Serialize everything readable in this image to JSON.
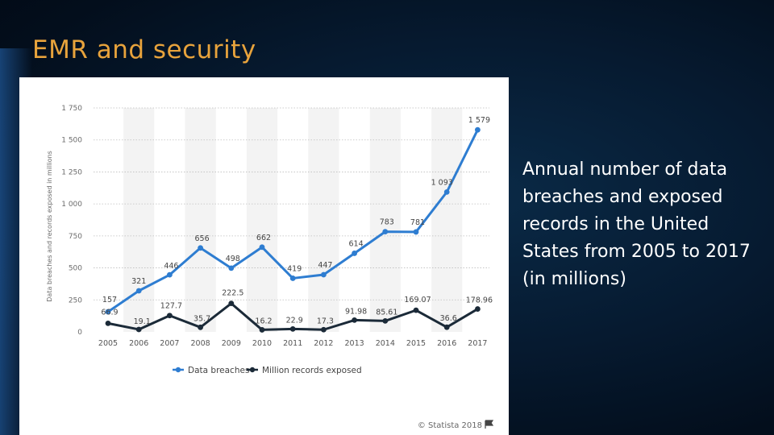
{
  "slide": {
    "title": "EMR and security",
    "caption": "Annual number of data breaches and exposed records in the United States from 2005 to 2017 (in millions)"
  },
  "chart_data": {
    "type": "line",
    "title": "",
    "xlabel": "",
    "ylabel": "Data breaches and records exposed in millions",
    "ylim": [
      0,
      1750
    ],
    "yticks": [
      0,
      250,
      500,
      750,
      1000,
      1250,
      1500,
      1750
    ],
    "ytick_labels": [
      "0",
      "250",
      "500",
      "750",
      "1 000",
      "1 250",
      "1 500",
      "1 750"
    ],
    "categories": [
      "2005",
      "2006",
      "2007",
      "2008",
      "2009",
      "2010",
      "2011",
      "2012",
      "2013",
      "2014",
      "2015",
      "2016",
      "2017"
    ],
    "grid": "horizontal-dotted",
    "legend_position": "bottom",
    "series": [
      {
        "name": "Data breaches",
        "color": "#2e7dd1",
        "values": [
          157,
          321,
          446,
          656,
          498,
          662,
          419,
          447,
          614,
          783,
          781,
          1093,
          1579
        ],
        "labels": [
          "157",
          "321",
          "446",
          "656",
          "498",
          "662",
          "419",
          "447",
          "614",
          "783",
          "781",
          "1 093",
          "1 579"
        ]
      },
      {
        "name": "Million records exposed",
        "color": "#1b2a38",
        "values": [
          66.9,
          19.1,
          127.7,
          35.7,
          222.5,
          16.2,
          22.9,
          17.3,
          91.98,
          85.61,
          169.07,
          36.6,
          178.96
        ],
        "labels": [
          "66.9",
          "19.1",
          "127.7",
          "35.7",
          "222.5",
          "16.2",
          "22.9",
          "17.3",
          "91.98",
          "85.61",
          "169.07",
          "36.6",
          "178.96"
        ]
      }
    ],
    "source": "© Statista 2018"
  },
  "icons": {
    "source_flag": "flag-icon"
  }
}
